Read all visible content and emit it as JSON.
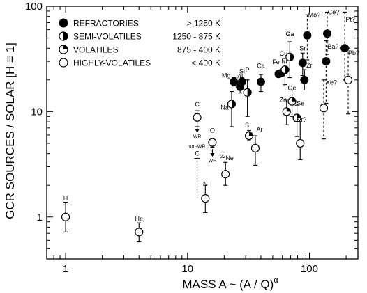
{
  "chart_data": {
    "type": "scatter",
    "xlabel": "MASS  A   ~   (A / Q)",
    "xlabel_sup": "α",
    "ylabel": "GCR SOURCES / SOLAR   [H ≡ 1]",
    "xscale": "log",
    "yscale": "log",
    "xlim": [
      0.7,
      250
    ],
    "ylim": [
      0.4,
      100
    ],
    "x_ticks": [
      {
        "v": 1,
        "t": "1"
      },
      {
        "v": 10,
        "t": "10"
      },
      {
        "v": 100,
        "t": "100"
      }
    ],
    "y_ticks": [
      {
        "v": 1,
        "t": "1"
      },
      {
        "v": 10,
        "t": "10"
      },
      {
        "v": 100,
        "t": "100"
      }
    ],
    "legend": {
      "placement": "top-left",
      "entries": [
        {
          "symbol": "full",
          "name": "REFRACTORIES",
          "range": "> 1250 K"
        },
        {
          "symbol": "half",
          "name": "SEMI-VOLATILES",
          "range": "1250 - 875 K"
        },
        {
          "symbol": "quarter",
          "name": "VOLATILES",
          "range": "875 - 400 K"
        },
        {
          "symbol": "open",
          "name": "HIGHLY-VOLATILES",
          "range": "< 400 K"
        }
      ]
    },
    "points": [
      {
        "label": "H",
        "x": 1,
        "y": 1.0,
        "lo": 0.72,
        "hi": 1.38,
        "symbol": "open",
        "lab_dx": 0,
        "lab_dy": -24
      },
      {
        "label": "He",
        "x": 4,
        "y": 0.72,
        "lo": 0.58,
        "hi": 0.88,
        "symbol": "open",
        "lab_dx": 0,
        "lab_dy": -16
      },
      {
        "label": "C",
        "x": 12,
        "y": 8.8,
        "lo": 7.2,
        "hi": 10.2,
        "symbol": "open",
        "lab_dx": 0,
        "lab_dy": -16
      },
      {
        "label": "N",
        "x": 14,
        "y": 1.5,
        "lo": 1.1,
        "hi": 2.0,
        "symbol": "open",
        "lab_dx": 0,
        "lab_dy": -18
      },
      {
        "label": "O",
        "x": 16,
        "y": 5.1,
        "lo": 4.6,
        "hi": 5.6,
        "symbol": "open",
        "lab_dx": 0,
        "lab_dy": -14
      },
      {
        "label": "22Ne",
        "x": 20.5,
        "y": 2.55,
        "lo": 2.0,
        "hi": 3.3,
        "symbol": "open",
        "lab_dx": 2,
        "lab_dy": -20
      },
      {
        "label": "Na",
        "x": 23,
        "y": 11.8,
        "lo": 7.2,
        "hi": 15.5,
        "symbol": "half",
        "lab_dx": -10,
        "lab_dy": 8
      },
      {
        "label": "Mg",
        "x": 24,
        "y": 19.2,
        "lo": 17.5,
        "hi": 21.0,
        "symbol": "full",
        "lab_dx": -11,
        "lab_dy": -6
      },
      {
        "label": "Al",
        "x": 27,
        "y": 17.2,
        "lo": 15.0,
        "hi": 19.5,
        "symbol": "full",
        "lab_dx": 0,
        "lab_dy": -12
      },
      {
        "label": "Si",
        "x": 28,
        "y": 19.2,
        "lo": 17.5,
        "hi": 21.0,
        "symbol": "full",
        "lab_dx": 0,
        "lab_dy": -12
      },
      {
        "label": "P",
        "x": 31,
        "y": 15.2,
        "lo": 9.0,
        "hi": 20.0,
        "symbol": "half",
        "lab_dx": 0,
        "lab_dy": -30
      },
      {
        "label": "S",
        "x": 32,
        "y": 5.9,
        "lo": 5.3,
        "hi": 6.6,
        "symbol": "quarter",
        "lab_dx": -3,
        "lab_dy": -12
      },
      {
        "label": "Ar",
        "x": 36,
        "y": 4.5,
        "lo": 3.1,
        "hi": 5.9,
        "symbol": "open",
        "lab_dx": 6,
        "lab_dy": -24
      },
      {
        "label": "Ca",
        "x": 40,
        "y": 19.2,
        "lo": 15.5,
        "hi": 22.5,
        "symbol": "full",
        "lab_dx": 0,
        "lab_dy": -20
      },
      {
        "label": "Fe",
        "x": 56,
        "y": 22.8,
        "lo": 21.5,
        "hi": 24.0,
        "symbol": "full",
        "lab_dx": -4,
        "lab_dy": -14
      },
      {
        "label": "Ni",
        "x": 59,
        "y": 23.2,
        "lo": 22.0,
        "hi": 24.5,
        "symbol": "full",
        "lab_dx": 4,
        "lab_dy": -14
      },
      {
        "label": "Cu",
        "x": 63,
        "y": 25.0,
        "lo": 18.0,
        "hi": 32.0,
        "symbol": "half",
        "lab_dx": -2,
        "lab_dy": -20
      },
      {
        "label": "Zn",
        "x": 65,
        "y": 10.0,
        "lo": 7.5,
        "hi": 13.0,
        "symbol": "quarter",
        "lab_dx": -5,
        "lab_dy": -14
      },
      {
        "label": "Ga",
        "x": 69,
        "y": 33.0,
        "lo": 21.0,
        "hi": 46.0,
        "symbol": "half",
        "lab_dx": 0,
        "lab_dy": -30
      },
      {
        "label": "Ge",
        "x": 72,
        "y": 12.5,
        "lo": 9.0,
        "hi": 16.0,
        "symbol": "quarter",
        "lab_dx": 0,
        "lab_dy": -16
      },
      {
        "label": "Se",
        "x": 79,
        "y": 8.7,
        "lo": 5.8,
        "hi": 11.5,
        "symbol": "quarter",
        "lab_dx": 5,
        "lab_dy": -18
      },
      {
        "label": "Kr?",
        "x": 84,
        "y": 5.0,
        "lo": 3.5,
        "hi": 8.0,
        "symbol": "open",
        "lab_dx": 2,
        "lab_dy": -31
      },
      {
        "label": "Sr",
        "x": 88,
        "y": 29.0,
        "lo": 22.0,
        "hi": 36.0,
        "symbol": "full",
        "lab_dx": 0,
        "lab_dy": -18
      },
      {
        "label": "Zr",
        "x": 91,
        "y": 20.0,
        "lo": 16.0,
        "hi": 25.0,
        "symbol": "full",
        "lab_dx": 7,
        "lab_dy": -18
      },
      {
        "label": "Mo?",
        "x": 96,
        "y": 53.0,
        "lo": 31.0,
        "hi": 83.0,
        "symbol": "full",
        "dashed": true,
        "lab_dx": 10,
        "lab_dy": -26
      },
      {
        "label": "Xe?",
        "x": 131,
        "y": 10.8,
        "lo": 5.5,
        "hi": 20.0,
        "symbol": "open",
        "dashed": true,
        "lab_dx": 11,
        "lab_dy": -34
      },
      {
        "label": "Ba?",
        "x": 137,
        "y": 30.0,
        "lo": 12.0,
        "hi": 47.0,
        "symbol": "full",
        "dashed": true,
        "lab_dx": 10,
        "lab_dy": -18
      },
      {
        "label": "Ce?",
        "x": 140,
        "y": 55.0,
        "lo": 35.0,
        "hi": 88.0,
        "symbol": "full",
        "dashed": true,
        "lab_dx": 9,
        "lab_dy": -28
      },
      {
        "label": "Pt?",
        "x": 195,
        "y": 40.0,
        "lo": 20.0,
        "hi": 88.0,
        "symbol": "full",
        "dashed": true,
        "lab_dx": 8,
        "lab_dy": -38
      },
      {
        "label": "Pb?",
        "x": 208,
        "y": 20.0,
        "lo": 9.5,
        "hi": 40.0,
        "symbol": "open",
        "dashed": true,
        "lab_dx": 8,
        "lab_dy": -36
      }
    ],
    "wr_annotations": [
      {
        "label": "C",
        "note": "non-WR",
        "x": 12,
        "y_top": 3.6,
        "y_bottom": 1.5,
        "style": "dotted"
      },
      {
        "note": "WR",
        "x": 12,
        "y_from": 7.2,
        "y_to": 6.4,
        "style": "arrow"
      },
      {
        "note": "WR",
        "x": 16,
        "y_from": 4.55,
        "y_to": 3.8,
        "style": "arrow"
      }
    ]
  }
}
